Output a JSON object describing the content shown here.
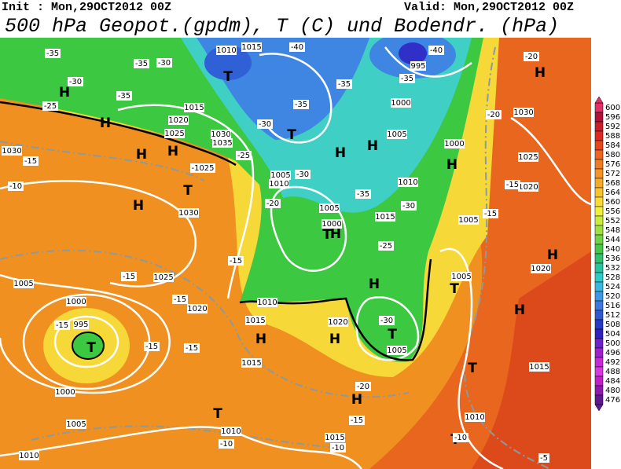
{
  "header": {
    "init": "Init : Mon,29OCT2012 00Z",
    "valid": "Valid: Mon,29OCT2012 00Z",
    "title": "500 hPa Geopot.(gpdm), T (C) und Bodendr. (hPa)"
  },
  "colorbar": {
    "labels": [
      600,
      596,
      592,
      588,
      584,
      580,
      576,
      572,
      568,
      564,
      560,
      556,
      552,
      548,
      544,
      540,
      536,
      532,
      528,
      524,
      520,
      516,
      512,
      508,
      504,
      500,
      496,
      492,
      488,
      484,
      480,
      476
    ],
    "colors": [
      "#e0306a",
      "#b0103a",
      "#c81e28",
      "#dc2a1e",
      "#e6461e",
      "#ee6420",
      "#f07c22",
      "#f39424",
      "#f6ab28",
      "#f8c42e",
      "#f8dc34",
      "#eef03a",
      "#c8ec3c",
      "#9ee040",
      "#6ed444",
      "#44c848",
      "#30c070",
      "#28c4a0",
      "#2cccc8",
      "#38b8e0",
      "#3c98e4",
      "#3c78e0",
      "#3058d4",
      "#2838c8",
      "#3020c0",
      "#7020c8",
      "#a020d0",
      "#c828d8",
      "#d838e0",
      "#c020c8",
      "#9018b0",
      "#601890"
    ]
  },
  "map": {
    "labels": [
      "H",
      "H",
      "H",
      "H",
      "H",
      "H",
      "H",
      "H",
      "H",
      "H",
      "H",
      "H",
      "H",
      "H",
      "H",
      "H",
      "T",
      "T",
      "T",
      "T",
      "T",
      "T",
      "T",
      "T",
      "T",
      "T",
      "1015",
      "1010",
      "995",
      "1000",
      "1015",
      "1020",
      "1025",
      "1030",
      "1035",
      "-1025",
      "1005",
      "1010",
      "1005",
      "1000",
      "1010",
      "1005",
      "1000",
      "1015",
      "1030",
      "1025",
      "1020",
      "1005",
      "1020",
      "1030",
      "1030",
      "1025",
      "1020",
      "1005",
      "1000",
      "995",
      "1010",
      "1015",
      "1020",
      "1005",
      "1015",
      "1000",
      "1005",
      "1010",
      "1015",
      "1010",
      "1010",
      "1015",
      "1005",
      "-35",
      "-30",
      "-25",
      "-35",
      "-35",
      "-30",
      "-40",
      "-40",
      "-35",
      "-35",
      "-35",
      "-30",
      "-25",
      "-30",
      "-35",
      "-30",
      "-25",
      "-30",
      "-20",
      "-15",
      "-15",
      "-15",
      "-15",
      "-15",
      "-15",
      "-20",
      "-15",
      "-10",
      "-10",
      "-5",
      "-10",
      "-20",
      "-20",
      "-15",
      "-15",
      "-15",
      "-10"
    ]
  }
}
